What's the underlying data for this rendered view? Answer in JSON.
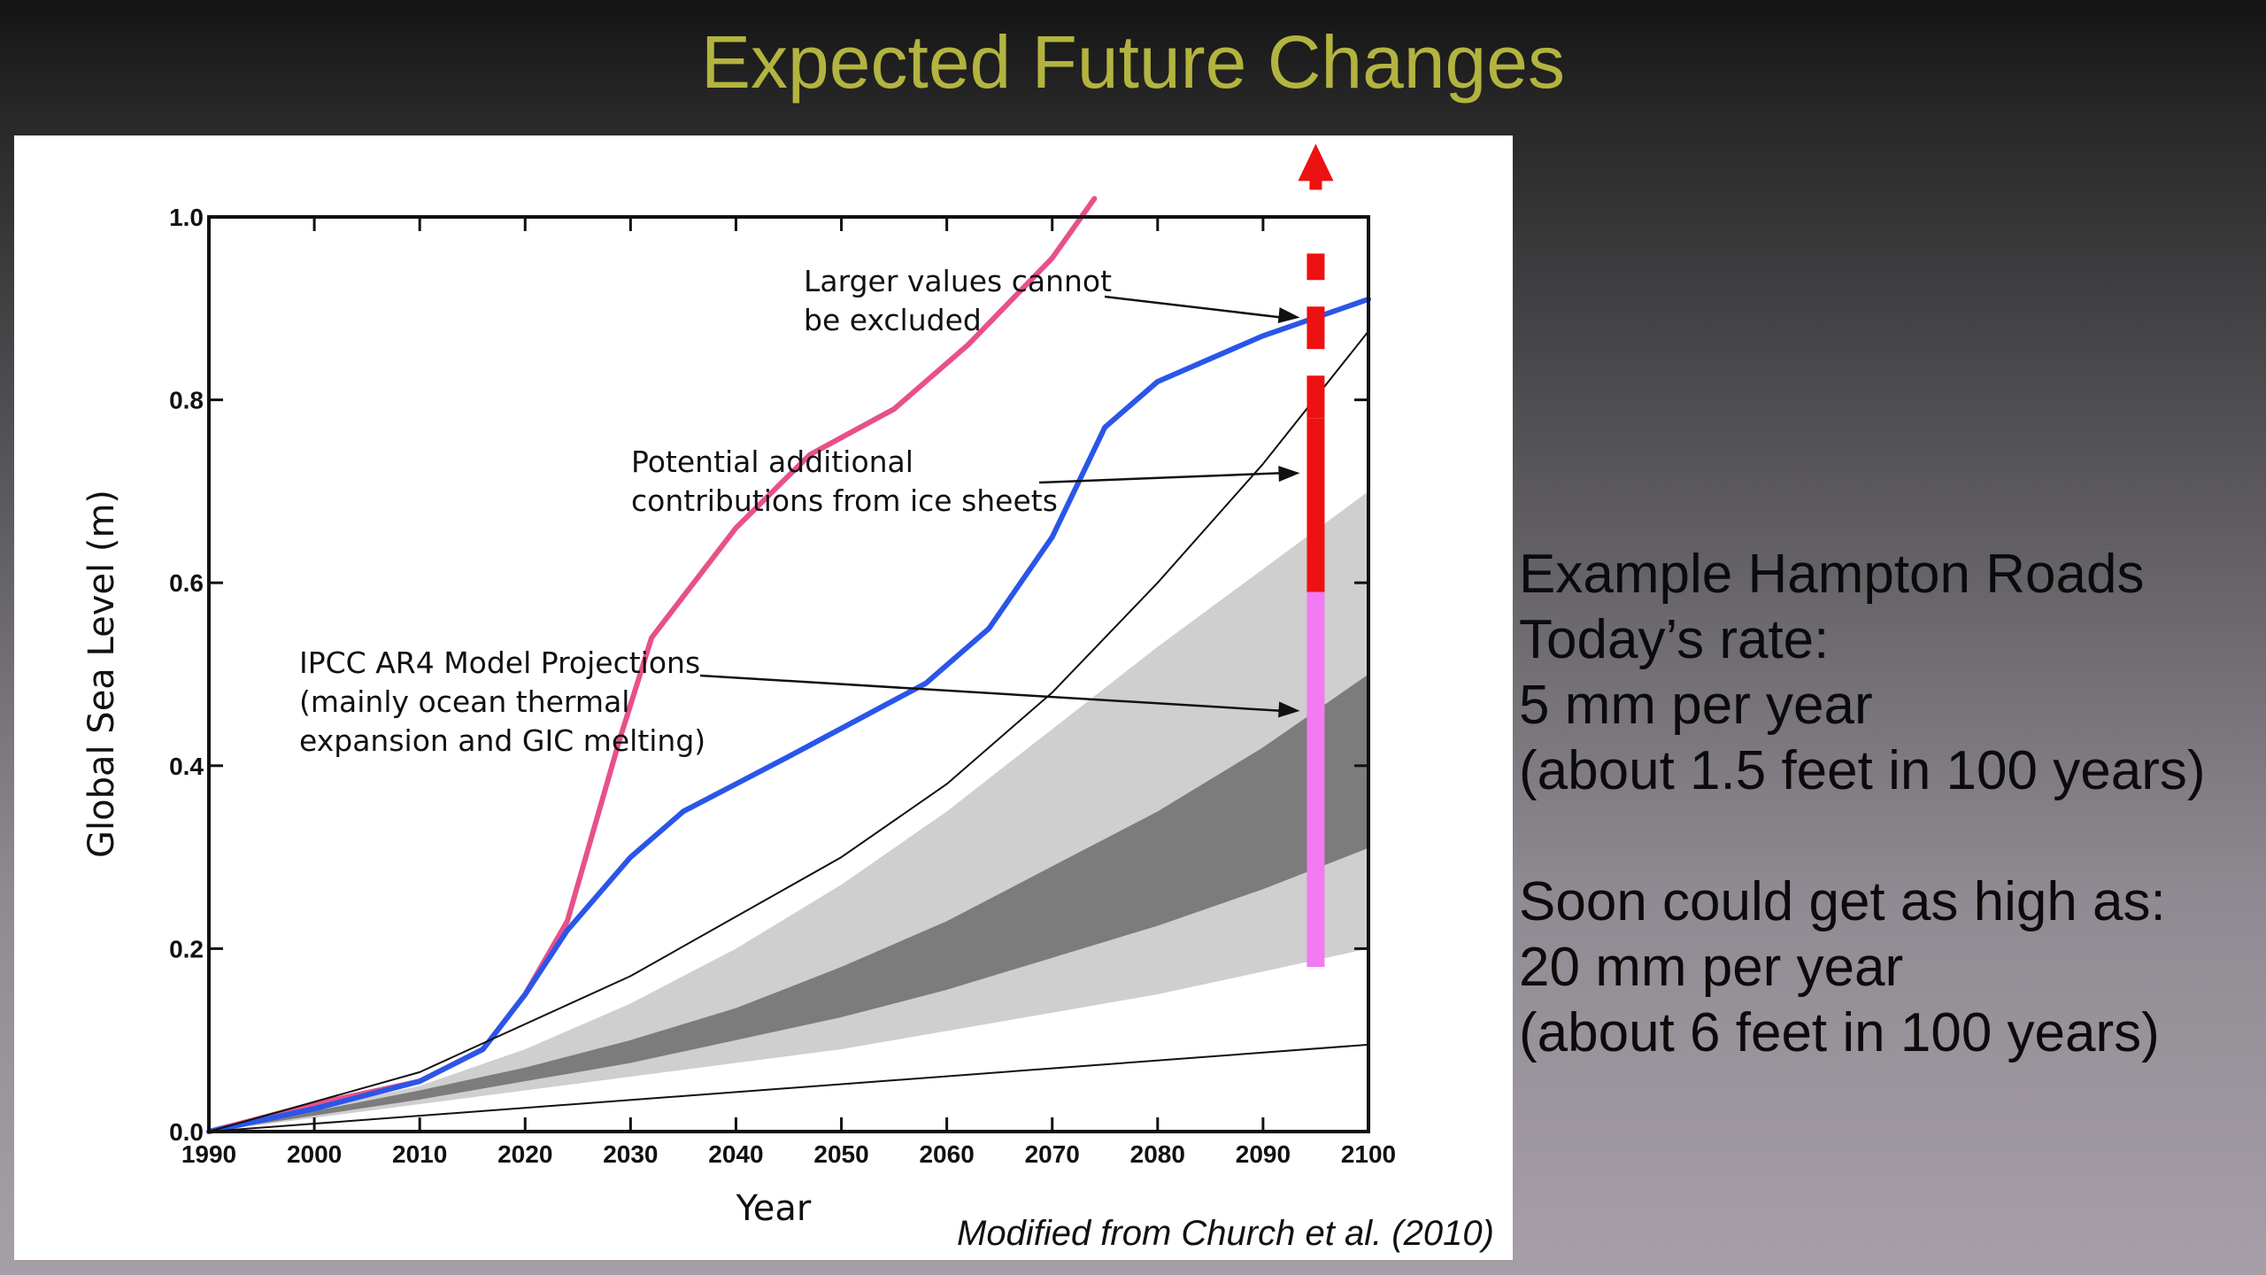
{
  "slide": {
    "title": "Expected Future Changes",
    "credit": "Modified from Church et al. (2010)"
  },
  "side_text": {
    "line1": "Example Hampton Roads",
    "line2": "Today’s rate:",
    "line3": "5 mm per year",
    "line4": "(about 1.5 feet in 100 years)",
    "line5": "Soon could get as high as:",
    "line6": "20 mm per year",
    "line7": "(about 6 feet in 100 years)"
  },
  "colors": {
    "title": "#b3b43f",
    "pink_curve": "#e8508a",
    "blue_curve": "#2a56e8",
    "red_bar": "#ee1111",
    "magenta_bar": "#f27af2",
    "light_band": "#cfcfcf",
    "dark_band": "#7c7c7c"
  },
  "chart_data": {
    "type": "line",
    "xlabel": "Year",
    "ylabel": "Global Sea Level (m)",
    "xlim": [
      1990,
      2100
    ],
    "ylim": [
      0,
      1.0
    ],
    "x_ticks": [
      1990,
      2000,
      2010,
      2020,
      2030,
      2040,
      2050,
      2060,
      2070,
      2080,
      2090,
      2100
    ],
    "y_ticks": [
      0.0,
      0.2,
      0.4,
      0.6,
      0.8,
      1.0
    ],
    "y_tick_labels": [
      "0.0",
      "0.2",
      "0.4",
      "0.6",
      "0.8",
      "1.0"
    ],
    "series": [
      {
        "style": "pink",
        "x": [
          1990,
          2000,
          2010,
          2016,
          2020,
          2024,
          2027,
          2029,
          2032,
          2040,
          2047,
          2055,
          2062,
          2070,
          2074
        ],
        "y": [
          0.0,
          0.03,
          0.055,
          0.09,
          0.15,
          0.23,
          0.35,
          0.43,
          0.54,
          0.66,
          0.74,
          0.79,
          0.86,
          0.955,
          1.02
        ]
      },
      {
        "style": "blue",
        "x": [
          1990,
          2000,
          2010,
          2016,
          2020,
          2024,
          2030,
          2035,
          2045,
          2058,
          2064,
          2070,
          2075,
          2080,
          2090,
          2100
        ],
        "y": [
          0.0,
          0.025,
          0.055,
          0.09,
          0.15,
          0.22,
          0.3,
          0.35,
          0.41,
          0.49,
          0.55,
          0.65,
          0.77,
          0.82,
          0.87,
          0.91
        ]
      },
      {
        "style": "black-upper",
        "x": [
          1990,
          2010,
          2030,
          2050,
          2060,
          2070,
          2080,
          2090,
          2100
        ],
        "y": [
          0.0,
          0.065,
          0.17,
          0.3,
          0.38,
          0.48,
          0.6,
          0.73,
          0.875
        ]
      },
      {
        "style": "black-lower",
        "x": [
          1990,
          2100
        ],
        "y": [
          0.0,
          0.095
        ]
      }
    ],
    "bands": [
      {
        "style": "light",
        "x": [
          1990,
          2010,
          2020,
          2030,
          2040,
          2050,
          2060,
          2070,
          2080,
          2090,
          2100
        ],
        "lower": [
          0.0,
          0.03,
          0.045,
          0.06,
          0.075,
          0.09,
          0.11,
          0.13,
          0.15,
          0.175,
          0.2
        ],
        "upper": [
          0.0,
          0.05,
          0.09,
          0.14,
          0.2,
          0.27,
          0.35,
          0.44,
          0.53,
          0.615,
          0.7
        ]
      },
      {
        "style": "dark",
        "x": [
          1990,
          2010,
          2020,
          2030,
          2040,
          2050,
          2060,
          2070,
          2080,
          2090,
          2100
        ],
        "lower": [
          0.0,
          0.035,
          0.055,
          0.075,
          0.1,
          0.125,
          0.155,
          0.19,
          0.225,
          0.265,
          0.31
        ],
        "upper": [
          0.0,
          0.045,
          0.07,
          0.1,
          0.135,
          0.18,
          0.23,
          0.29,
          0.35,
          0.42,
          0.5
        ]
      }
    ],
    "vertical_bar": {
      "x": 2095,
      "magenta_range": [
        0.18,
        0.59
      ],
      "red_solid_range": [
        0.59,
        0.78
      ],
      "red_dashed_range": [
        0.78,
        0.96
      ],
      "arrow_to": 1.08
    },
    "annotations": [
      {
        "line1": "Larger values cannot",
        "line2": "be excluded",
        "text_x": 2005,
        "text_y": 0.915,
        "arrow_to": [
          2094,
          0.89
        ]
      },
      {
        "line1": "Potential additional",
        "line2": "contributions from ice sheets",
        "text_x": 2005,
        "text_y": 0.665,
        "arrow_to": [
          2094,
          0.72
        ]
      },
      {
        "line1": "IPCC AR4 Model Projections",
        "line2": "(mainly ocean thermal",
        "line3": "expansion and GIC melting)",
        "text_x": 1992,
        "text_y": 0.455,
        "arrow_to": [
          2094,
          0.46
        ]
      }
    ]
  }
}
